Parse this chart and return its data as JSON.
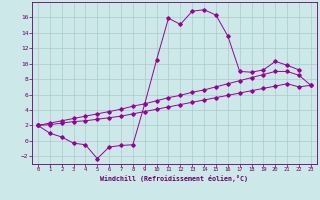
{
  "xlabel": "Windchill (Refroidissement éolien,°C)",
  "background_color": "#cce8e8",
  "grid_color": "#aacccc",
  "line_color": "#990099",
  "xlim": [
    -0.5,
    23.5
  ],
  "ylim": [
    -3,
    18
  ],
  "xticks": [
    0,
    1,
    2,
    3,
    4,
    5,
    6,
    7,
    8,
    9,
    10,
    11,
    12,
    13,
    14,
    15,
    16,
    17,
    18,
    19,
    20,
    21,
    22,
    23
  ],
  "yticks": [
    -2,
    0,
    2,
    4,
    6,
    8,
    10,
    12,
    14,
    16
  ],
  "series1_x": [
    0,
    1,
    2,
    3,
    4,
    5,
    6,
    7,
    8,
    9,
    10,
    11,
    12,
    13,
    14,
    15,
    16,
    17,
    18,
    19,
    20,
    21,
    22
  ],
  "series1_y": [
    2.0,
    1.0,
    0.5,
    -0.3,
    -0.5,
    -2.3,
    -0.8,
    -0.6,
    -0.5,
    4.8,
    10.5,
    15.9,
    15.1,
    16.8,
    17.0,
    16.3,
    13.6,
    9.0,
    8.9,
    9.2,
    10.3,
    9.8,
    9.2
  ],
  "series2_x": [
    0,
    1,
    2,
    3,
    4,
    5,
    6,
    7,
    8,
    9,
    10,
    11,
    12,
    13,
    14,
    15,
    16,
    17,
    18,
    19,
    20,
    21,
    22,
    23
  ],
  "series2_y": [
    2.0,
    2.1,
    2.3,
    2.5,
    2.6,
    2.8,
    3.0,
    3.2,
    3.5,
    3.8,
    4.1,
    4.4,
    4.7,
    5.0,
    5.3,
    5.6,
    5.9,
    6.2,
    6.5,
    6.8,
    7.1,
    7.4,
    7.0,
    7.2
  ],
  "series3_x": [
    0,
    1,
    2,
    3,
    4,
    5,
    6,
    7,
    8,
    9,
    10,
    11,
    12,
    13,
    14,
    15,
    16,
    17,
    18,
    19,
    20,
    21,
    22,
    23
  ],
  "series3_y": [
    2.0,
    2.3,
    2.6,
    2.9,
    3.2,
    3.5,
    3.8,
    4.1,
    4.5,
    4.8,
    5.2,
    5.6,
    5.9,
    6.3,
    6.6,
    7.0,
    7.4,
    7.8,
    8.2,
    8.6,
    9.0,
    9.0,
    8.5,
    7.2
  ]
}
